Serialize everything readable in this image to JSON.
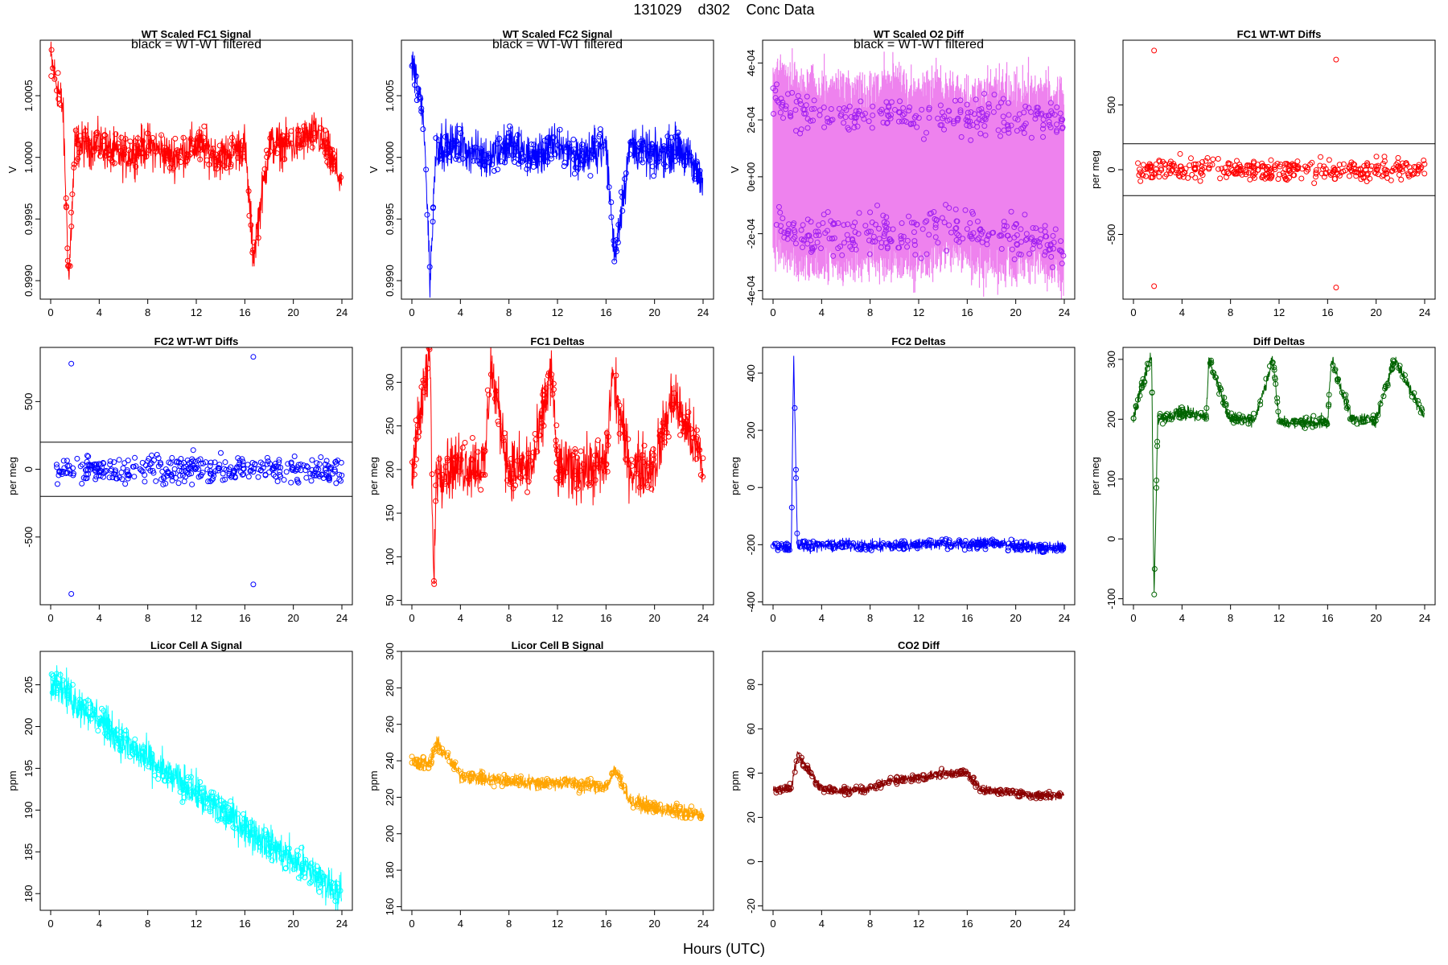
{
  "figure": {
    "title": "131029    d302    Conc Data",
    "xlabel": "Hours (UTC)"
  },
  "chart_data": [
    {
      "type": "line",
      "title": "WT Scaled FC1 Signal",
      "note": "black = WT-WT filtered",
      "ylabel": "V",
      "color": "#ff0000",
      "xlim": [
        0,
        24
      ],
      "ylim": [
        0.99885,
        1.00095
      ],
      "xticks": [
        "0",
        "4",
        "8",
        "12",
        "16",
        "20",
        "24"
      ],
      "yticks": [
        0.999,
        0.9995,
        1.0,
        1.0005
      ],
      "ytick_labels": [
        "0.9990",
        "0.9995",
        "1.0000",
        "1.0005"
      ],
      "x": [
        0,
        1,
        1.5,
        2,
        4,
        6,
        8,
        10,
        12,
        14,
        16,
        16.7,
        18,
        20,
        22,
        24
      ],
      "values": [
        1.0008,
        1.0004,
        0.999,
        1.0001,
        1.0001,
        1.0,
        1.0001,
        1.0,
        1.0001,
        1.0,
        1.0001,
        0.9992,
        1.0001,
        1.0001,
        1.0002,
        0.9998
      ]
    },
    {
      "type": "line",
      "title": "WT Scaled FC2 Signal",
      "note": "black = WT-WT filtered",
      "ylabel": "V",
      "color": "#0000ff",
      "xlim": [
        0,
        24
      ],
      "ylim": [
        0.99885,
        1.00095
      ],
      "xticks": [
        "0",
        "4",
        "8",
        "12",
        "16",
        "20",
        "24"
      ],
      "yticks": [
        0.999,
        0.9995,
        1.0,
        1.0005
      ],
      "ytick_labels": [
        "0.9990",
        "0.9995",
        "1.0000",
        "1.0005"
      ],
      "x": [
        0,
        1,
        1.5,
        2,
        4,
        6,
        8,
        10,
        12,
        14,
        16,
        16.7,
        18,
        20,
        22,
        24
      ],
      "values": [
        1.0008,
        1.0003,
        0.999,
        1.0001,
        1.0001,
        1.0,
        1.0001,
        1.0,
        1.0001,
        1.0,
        1.0001,
        0.9992,
        1.0001,
        1.0,
        1.0001,
        0.9998
      ]
    },
    {
      "type": "line",
      "title": "WT Scaled O2 Diff",
      "note": "black = WT-WT filtered",
      "ylabel": "V",
      "color": "#ee82ee",
      "point_color": "#a020f0",
      "xlim": [
        0,
        24
      ],
      "ylim": [
        -0.00043,
        0.00048
      ],
      "xticks": [
        "0",
        "4",
        "8",
        "12",
        "16",
        "20",
        "24"
      ],
      "yticks": [
        -0.0004,
        -0.0002,
        0,
        0.0002,
        0.0004
      ],
      "ytick_labels": [
        "-4e-04",
        "-2e-04",
        "0e+00",
        "2e-04",
        "4e-04"
      ],
      "x": [
        0,
        2,
        4,
        6,
        8,
        10,
        12,
        14,
        16,
        18,
        20,
        22,
        24
      ],
      "upper": [
        0.00028,
        0.00022,
        0.00022,
        0.0002,
        0.00021,
        0.00024,
        0.0002,
        0.00022,
        0.00019,
        0.00022,
        0.0002,
        0.00021,
        0.0002
      ],
      "lower": [
        -0.00012,
        -0.00022,
        -0.0002,
        -0.00021,
        -0.00019,
        -0.0002,
        -0.00021,
        -0.00016,
        -0.00017,
        -0.00022,
        -0.00021,
        -0.0002,
        -0.00025
      ]
    },
    {
      "type": "scatter",
      "title": "FC1 WT-WT Diffs",
      "ylabel": "per meg",
      "color": "#ff0000",
      "xlim": [
        0,
        24
      ],
      "ylim": [
        -1000,
        1000
      ],
      "xticks": [
        "0",
        "4",
        "8",
        "12",
        "16",
        "20",
        "24"
      ],
      "yticks": [
        -500,
        0,
        500
      ],
      "ytick_labels": [
        "-500",
        "0",
        "500"
      ],
      "hlines": [
        200,
        -200
      ],
      "spread": 60,
      "outliers": [
        {
          "x": 1.7,
          "y": 920
        },
        {
          "x": 1.7,
          "y": -900
        },
        {
          "x": 16.7,
          "y": 850
        },
        {
          "x": 16.7,
          "y": -910
        }
      ]
    },
    {
      "type": "scatter",
      "title": "FC2 WT-WT Diffs",
      "ylabel": "per meg",
      "color": "#0000ff",
      "xlim": [
        0,
        24
      ],
      "ylim": [
        -1000,
        900
      ],
      "xticks": [
        "0",
        "4",
        "8",
        "12",
        "16",
        "20",
        "24"
      ],
      "yticks": [
        -500,
        0,
        500
      ],
      "ytick_labels": [
        "-500",
        "0",
        "500"
      ],
      "hlines": [
        200,
        -200
      ],
      "spread": 70,
      "outliers": [
        {
          "x": 1.7,
          "y": 780
        },
        {
          "x": 1.7,
          "y": -920
        },
        {
          "x": 16.7,
          "y": 830
        },
        {
          "x": 16.7,
          "y": -850
        }
      ]
    },
    {
      "type": "line",
      "title": "FC1 Deltas",
      "ylabel": "per meg",
      "color": "#ff0000",
      "xlim": [
        0,
        24
      ],
      "ylim": [
        45,
        340
      ],
      "xticks": [
        "0",
        "4",
        "8",
        "12",
        "16",
        "20",
        "24"
      ],
      "yticks": [
        50,
        100,
        150,
        200,
        250,
        300
      ],
      "ytick_labels": [
        "50",
        "100",
        "150",
        "200",
        "250",
        "300"
      ],
      "x": [
        0,
        1.5,
        1.8,
        2,
        4,
        6,
        6.5,
        8,
        10,
        11.5,
        12,
        14,
        16,
        16.5,
        18,
        20,
        21.5,
        24
      ],
      "values": [
        205,
        330,
        55,
        200,
        205,
        205,
        320,
        200,
        205,
        315,
        200,
        200,
        205,
        310,
        200,
        205,
        285,
        205
      ],
      "noise": 25
    },
    {
      "type": "line",
      "title": "FC2 Deltas",
      "ylabel": "per meg",
      "color": "#0000ff",
      "xlim": [
        0,
        24
      ],
      "ylim": [
        -410,
        490
      ],
      "xticks": [
        "0",
        "4",
        "8",
        "12",
        "16",
        "20",
        "24"
      ],
      "yticks": [
        -400,
        -200,
        0,
        200,
        400
      ],
      "ytick_labels": [
        "-400",
        "-200",
        "0",
        "200",
        "400"
      ],
      "x": [
        0,
        1.5,
        1.7,
        2,
        4,
        6,
        8,
        10,
        12,
        14,
        16,
        18,
        20,
        22,
        24
      ],
      "values": [
        -205,
        -210,
        470,
        -200,
        -205,
        -200,
        -205,
        -205,
        -200,
        -195,
        -200,
        -195,
        -205,
        -210,
        -210
      ],
      "noise": 15
    },
    {
      "type": "line",
      "title": "Diff Deltas",
      "ylabel": "per meg",
      "color": "#006400",
      "xlim": [
        0,
        24
      ],
      "ylim": [
        -110,
        320
      ],
      "xticks": [
        "0",
        "4",
        "8",
        "12",
        "16",
        "20",
        "24"
      ],
      "yticks": [
        -100,
        0,
        100,
        200,
        300
      ],
      "ytick_labels": [
        "-100",
        "0",
        "100",
        "200",
        "300"
      ],
      "x": [
        0,
        1.5,
        1.7,
        2,
        4,
        6,
        6.2,
        8,
        10,
        11.5,
        12,
        14,
        16,
        16.3,
        18,
        20,
        21.5,
        24
      ],
      "values": [
        205,
        310,
        -100,
        200,
        210,
        205,
        300,
        200,
        200,
        300,
        195,
        195,
        195,
        300,
        200,
        200,
        300,
        205
      ],
      "noise": 8
    },
    {
      "type": "line",
      "title": "Licor Cell A Signal",
      "ylabel": "ppm",
      "color": "#00ffff",
      "xlim": [
        0,
        24
      ],
      "ylim": [
        178,
        209
      ],
      "xticks": [
        "0",
        "4",
        "8",
        "12",
        "16",
        "20",
        "24"
      ],
      "yticks": [
        180,
        185,
        190,
        195,
        200,
        205
      ],
      "ytick_labels": [
        "180",
        "185",
        "190",
        "195",
        "200",
        "205"
      ],
      "x": [
        0,
        2,
        4,
        6,
        8,
        10,
        12,
        14,
        16,
        18,
        20,
        22,
        24
      ],
      "values": [
        206,
        203,
        201,
        198,
        196,
        194,
        192,
        190,
        188,
        186,
        184,
        182,
        180
      ],
      "noise": 1.6
    },
    {
      "type": "line",
      "title": "Licor Cell B Signal",
      "ylabel": "ppm",
      "color": "#ffa500",
      "xlim": [
        0,
        24
      ],
      "ylim": [
        158,
        300
      ],
      "xticks": [
        "0",
        "4",
        "8",
        "12",
        "16",
        "20",
        "24"
      ],
      "yticks": [
        160,
        180,
        200,
        220,
        240,
        260,
        280,
        300
      ],
      "ytick_labels": [
        "160",
        "180",
        "200",
        "220",
        "240",
        "260",
        "280",
        "300"
      ],
      "x": [
        0,
        1.5,
        2,
        4,
        6,
        8,
        10,
        12,
        14,
        16,
        16.8,
        18,
        20,
        22,
        24
      ],
      "values": [
        240,
        238,
        250,
        232,
        230,
        229,
        228,
        228,
        227,
        226,
        235,
        218,
        214,
        212,
        210
      ],
      "noise": 3
    },
    {
      "type": "line",
      "title": "CO2 Diff",
      "ylabel": "ppm",
      "color": "#8b0000",
      "xlim": [
        0,
        24
      ],
      "ylim": [
        -22,
        95
      ],
      "xticks": [
        "0",
        "4",
        "8",
        "12",
        "16",
        "20",
        "24"
      ],
      "yticks": [
        -20,
        0,
        20,
        40,
        60,
        80
      ],
      "ytick_labels": [
        "-20",
        "0",
        "20",
        "40",
        "60",
        "80"
      ],
      "x": [
        0,
        1.5,
        2,
        4,
        6,
        8,
        10,
        12,
        14,
        16,
        17,
        18,
        20,
        22,
        24
      ],
      "values": [
        33,
        33,
        48,
        33,
        32,
        33,
        37,
        38,
        40,
        40,
        33,
        32,
        31,
        30,
        30
      ],
      "noise": 1.5
    }
  ]
}
